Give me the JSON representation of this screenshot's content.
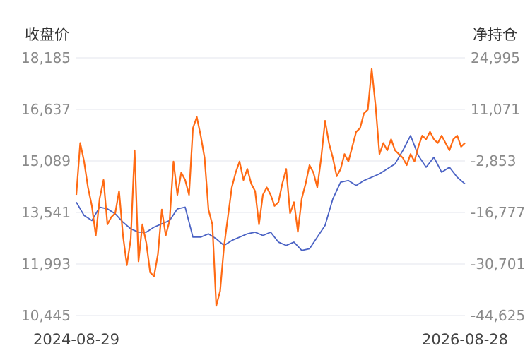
{
  "chart_data": {
    "type": "line",
    "y_left_label": "收盘价",
    "y_right_label": "净持仓",
    "x_start_label": "2024-08-29",
    "x_end_label": "2026-08-28",
    "y_left_ticks": [
      "18,185",
      "16,637",
      "15,089",
      "13,541",
      "11,993",
      "10,445"
    ],
    "y_right_ticks": [
      "24,995",
      "11,071",
      "-2,853",
      "-16,777",
      "-30,701",
      "-44,625"
    ],
    "y_left_range": [
      10445,
      18185
    ],
    "y_right_range": [
      -44625,
      24995
    ],
    "grid": true,
    "x_index_range": [
      0,
      100
    ],
    "series": [
      {
        "color": "#4a62c4",
        "axis": "left",
        "x": [
          0,
          2,
          4,
          6,
          8,
          10,
          12,
          14,
          16,
          18,
          20,
          22,
          24,
          26,
          28,
          30,
          32,
          34,
          36,
          38,
          40,
          42,
          44,
          46,
          48,
          50,
          52,
          54,
          56,
          58,
          60,
          62,
          64,
          66,
          68,
          70,
          72,
          74,
          76,
          78,
          80,
          82,
          84,
          86,
          88,
          90,
          92,
          94,
          96,
          98,
          100
        ],
        "values": [
          13850,
          13450,
          13300,
          13700,
          13650,
          13500,
          13250,
          13050,
          12950,
          12950,
          13100,
          13200,
          13300,
          13650,
          13700,
          12800,
          12800,
          12900,
          12750,
          12550,
          12700,
          12800,
          12900,
          12950,
          12850,
          12950,
          12650,
          12550,
          12650,
          12400,
          12450,
          12800,
          13150,
          13950,
          14450,
          14500,
          14350,
          14500,
          14600,
          14700,
          14850,
          15000,
          15400,
          15850,
          15250,
          14900,
          15200,
          14750,
          14900,
          14600,
          14400
        ]
      },
      {
        "color": "#ff6a13",
        "axis": "right",
        "x": [
          0,
          1,
          2,
          3,
          4,
          5,
          6,
          7,
          8,
          9,
          10,
          11,
          12,
          13,
          14,
          15,
          16,
          17,
          18,
          19,
          20,
          21,
          22,
          23,
          24,
          25,
          26,
          27,
          28,
          29,
          30,
          31,
          32,
          33,
          34,
          35,
          36,
          37,
          38,
          39,
          40,
          41,
          42,
          43,
          44,
          45,
          46,
          47,
          48,
          49,
          50,
          51,
          52,
          53,
          54,
          55,
          56,
          57,
          58,
          59,
          60,
          61,
          62,
          63,
          64,
          65,
          66,
          67,
          68,
          69,
          70,
          71,
          72,
          73,
          74,
          75,
          76,
          77,
          78,
          79,
          80,
          81,
          82,
          83,
          84,
          85,
          86,
          87,
          88,
          89,
          90,
          91,
          92,
          93,
          94,
          95,
          96,
          97,
          98,
          99,
          100
        ],
        "values": [
          -12000,
          2000,
          -3000,
          -10000,
          -15000,
          -23000,
          -13000,
          -8000,
          -20000,
          -18000,
          -17000,
          -11000,
          -23000,
          -31000,
          -24000,
          0,
          -30000,
          -20000,
          -25000,
          -33000,
          -34000,
          -28000,
          -16000,
          -23000,
          -19000,
          -3000,
          -12000,
          -6000,
          -8000,
          -12000,
          6000,
          9000,
          4000,
          -2000,
          -16000,
          -20000,
          -42000,
          -38000,
          -26000,
          -18000,
          -10000,
          -6000,
          -3000,
          -8000,
          -5000,
          -9000,
          -11000,
          -20000,
          -12000,
          -10000,
          -12000,
          -15000,
          -14000,
          -9000,
          -5000,
          -17000,
          -14000,
          -22000,
          -13000,
          -9000,
          -4000,
          -6000,
          -10000,
          -2000,
          8000,
          2000,
          -2000,
          -7000,
          -5000,
          -1000,
          -3000,
          1000,
          5000,
          6000,
          10000,
          11000,
          22000,
          12000,
          -1000,
          2000,
          0,
          3000,
          0,
          -1000,
          -2000,
          -4000,
          -1000,
          -3000,
          1000,
          4000,
          3000,
          5000,
          3000,
          2000,
          4000,
          2000,
          0,
          3000,
          4000,
          1000,
          2000
        ]
      }
    ]
  }
}
